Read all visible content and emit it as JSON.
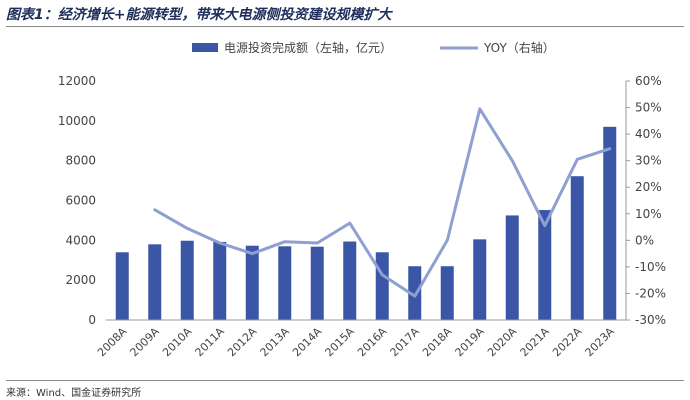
{
  "title": "图表1：经济增长+能源转型，带来大电源侧投资建设规模扩大",
  "source": "来源：Wind、国金证券研究所",
  "chart_data": {
    "type": "bar+line",
    "categories": [
      "2008A",
      "2009A",
      "2010A",
      "2011A",
      "2012A",
      "2013A",
      "2014A",
      "2015A",
      "2016A",
      "2017A",
      "2018A",
      "2019A",
      "2020A",
      "2021A",
      "2022A",
      "2023A"
    ],
    "series": [
      {
        "name": "电源投资完成额（左轴，亿元）",
        "type": "bar",
        "axis": "left",
        "color": "#3b56a6",
        "values": [
          3400,
          3800,
          3980,
          3920,
          3730,
          3700,
          3680,
          3940,
          3400,
          2700,
          2700,
          4050,
          5250,
          5520,
          7220,
          9700
        ]
      },
      {
        "name": "YOY（右轴）",
        "type": "line",
        "axis": "right",
        "color": "#8e9fd2",
        "values": [
          null,
          11.5,
          4.5,
          -1,
          -5,
          -0.5,
          -1,
          6.5,
          -13,
          -21,
          0,
          49.5,
          30,
          5.5,
          30.5,
          34.5
        ]
      }
    ],
    "yleft": {
      "min": 0,
      "max": 12000,
      "ticks": [
        "0",
        "2000",
        "4000",
        "6000",
        "8000",
        "10000",
        "12000"
      ]
    },
    "yright": {
      "min": -30,
      "max": 60,
      "ticks": [
        "-30%",
        "-20%",
        "-10%",
        "0%",
        "10%",
        "20%",
        "30%",
        "40%",
        "50%",
        "60%"
      ]
    },
    "legend_position": "top-center",
    "grid": false
  }
}
